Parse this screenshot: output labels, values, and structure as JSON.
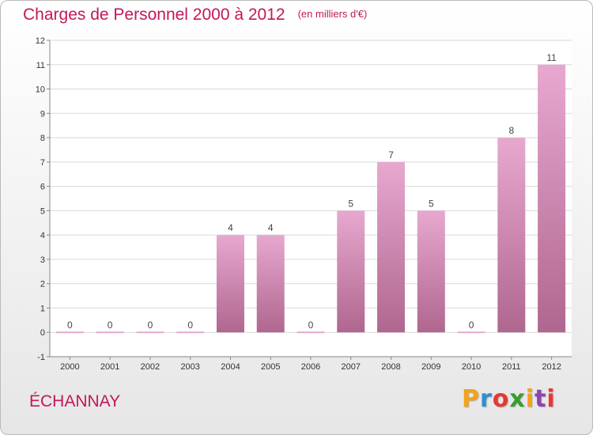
{
  "header": {
    "title": "Charges de Personnel 2000 à 2012",
    "unit": "(en milliers d'€)"
  },
  "footer": {
    "commune": "ÉCHANNAY",
    "logo_text": "Proxiti",
    "logo_colors": [
      "#f4a21b",
      "#2e8fd4",
      "#e53935",
      "#3a9d2f",
      "#f4a21b",
      "#8e44ad",
      "#e53935"
    ]
  },
  "colors": {
    "title": "#c2185b",
    "bar_top": "#e7a8cf",
    "bar_bottom": "#b0678f",
    "axis": "#888888",
    "grid": "#d9d9d9"
  },
  "chart_data": {
    "type": "bar",
    "categories": [
      "2000",
      "2001",
      "2002",
      "2003",
      "2004",
      "2005",
      "2006",
      "2007",
      "2008",
      "2009",
      "2010",
      "2011",
      "2012"
    ],
    "values": [
      0,
      0,
      0,
      0,
      4,
      4,
      0,
      5,
      7,
      5,
      0,
      8,
      11
    ],
    "data_labels": [
      "0",
      "0",
      "0",
      "0",
      "4",
      "4",
      "0",
      "5",
      "7",
      "5",
      "0",
      "8",
      "11"
    ],
    "y_ticks": [
      "-1",
      "0",
      "1",
      "2",
      "3",
      "4",
      "5",
      "6",
      "7",
      "8",
      "9",
      "10",
      "11",
      "12"
    ],
    "ylim": [
      -1,
      12
    ],
    "grid": true,
    "xlabel": "",
    "ylabel": ""
  }
}
